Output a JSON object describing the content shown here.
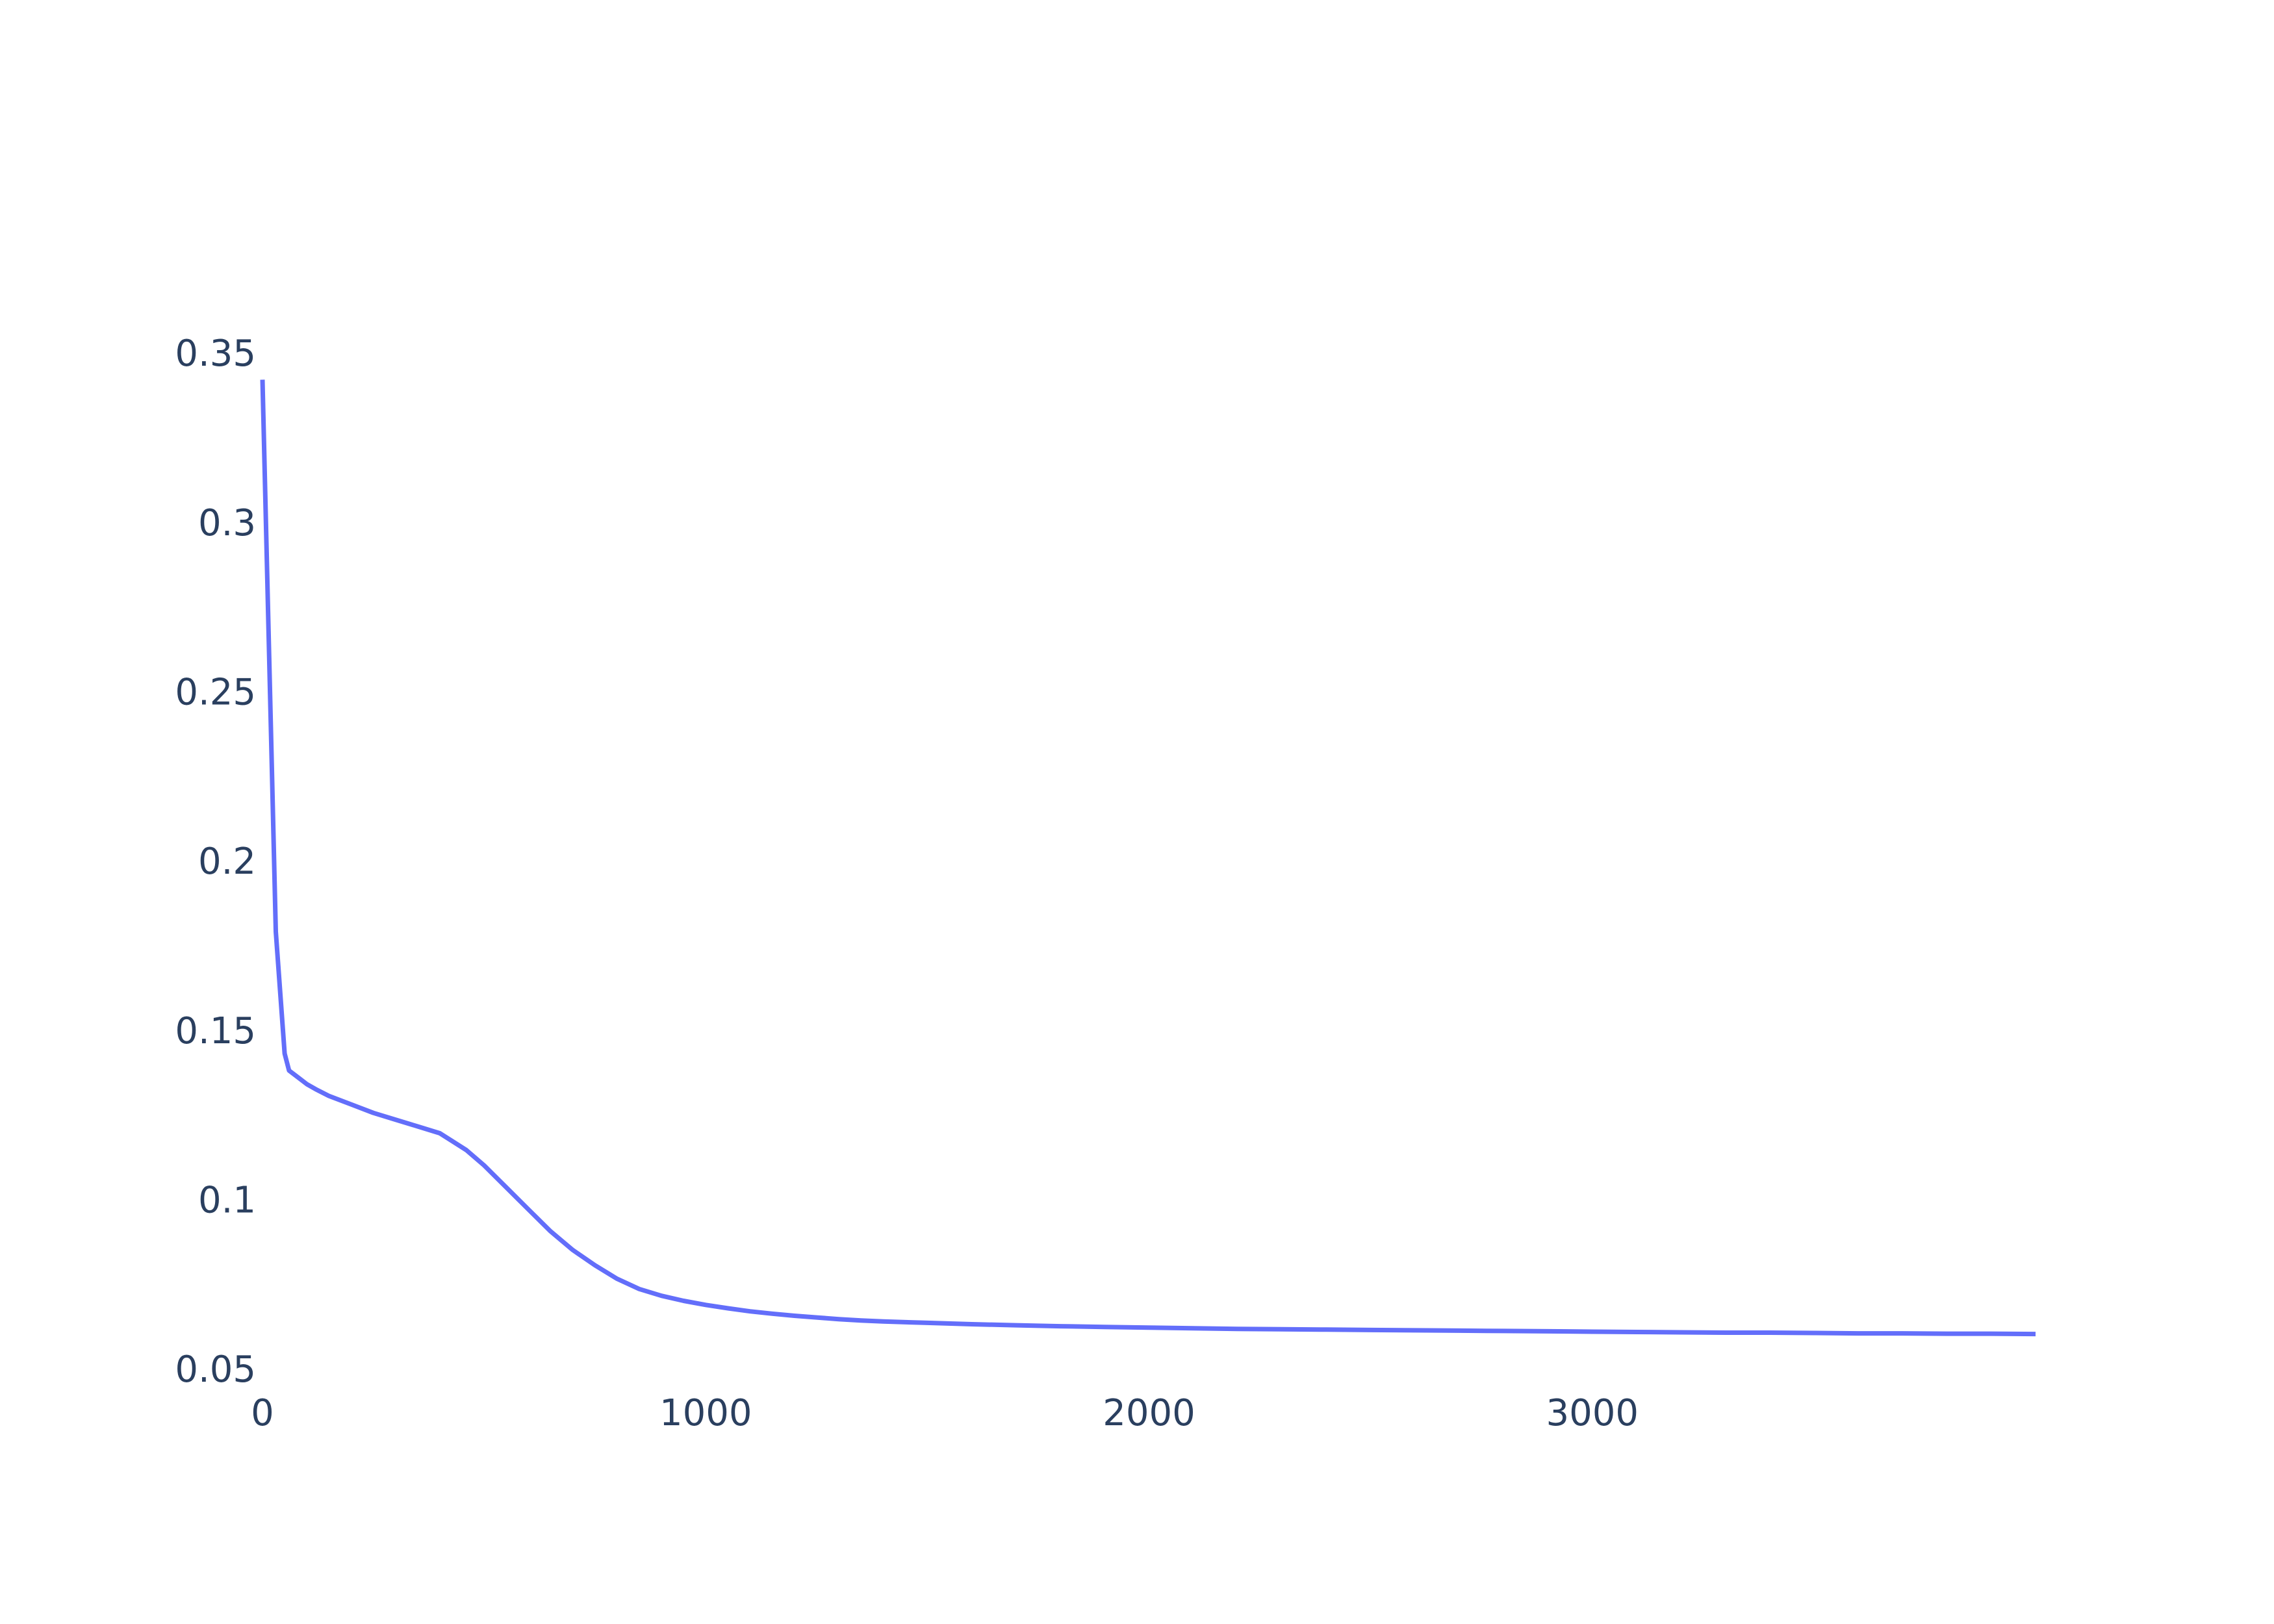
{
  "chart_data": {
    "type": "line",
    "title": "",
    "xlabel": "",
    "ylabel": "",
    "xlim": [
      0,
      4000
    ],
    "ylim": [
      0.05,
      0.35
    ],
    "grid": false,
    "legend": "none",
    "x_ticks": [
      0,
      1000,
      2000,
      3000
    ],
    "x_tick_labels": [
      "0",
      "1000",
      "2000",
      "3000"
    ],
    "y_ticks": [
      0.05,
      0.1,
      0.15,
      0.2,
      0.25,
      0.3,
      0.35
    ],
    "y_tick_labels": [
      "0.05",
      "0.1",
      "0.15",
      "0.2",
      "0.25",
      "0.3",
      "0.35"
    ],
    "series": [
      {
        "color": "#636efa",
        "x": [
          0,
          30,
          50,
          60,
          80,
          100,
          120,
          150,
          200,
          250,
          300,
          350,
          400,
          430,
          460,
          500,
          550,
          600,
          650,
          700,
          750,
          800,
          850,
          900,
          950,
          1000,
          1050,
          1100,
          1150,
          1200,
          1250,
          1300,
          1350,
          1400,
          1500,
          1600,
          1700,
          1800,
          1900,
          2000,
          2100,
          2200,
          2300,
          2400,
          2500,
          2600,
          2700,
          2800,
          2900,
          3000,
          3100,
          3200,
          3300,
          3400,
          3500,
          3600,
          3700,
          3800,
          3900,
          4000
        ],
        "y": [
          0.343,
          0.18,
          0.144,
          0.139,
          0.137,
          0.135,
          0.1335,
          0.1315,
          0.129,
          0.1265,
          0.1245,
          0.1225,
          0.1205,
          0.118,
          0.1155,
          0.111,
          0.1045,
          0.098,
          0.0915,
          0.086,
          0.0815,
          0.0775,
          0.0745,
          0.0725,
          0.071,
          0.0698,
          0.0688,
          0.0679,
          0.0672,
          0.0666,
          0.0661,
          0.0656,
          0.0652,
          0.0649,
          0.0645,
          0.0641,
          0.0638,
          0.0635,
          0.0633,
          0.0631,
          0.0629,
          0.0627,
          0.0626,
          0.0625,
          0.0624,
          0.0623,
          0.0622,
          0.0621,
          0.062,
          0.0619,
          0.0618,
          0.0617,
          0.0616,
          0.0616,
          0.0615,
          0.0614,
          0.0614,
          0.0613,
          0.0613,
          0.0612
        ]
      }
    ]
  }
}
